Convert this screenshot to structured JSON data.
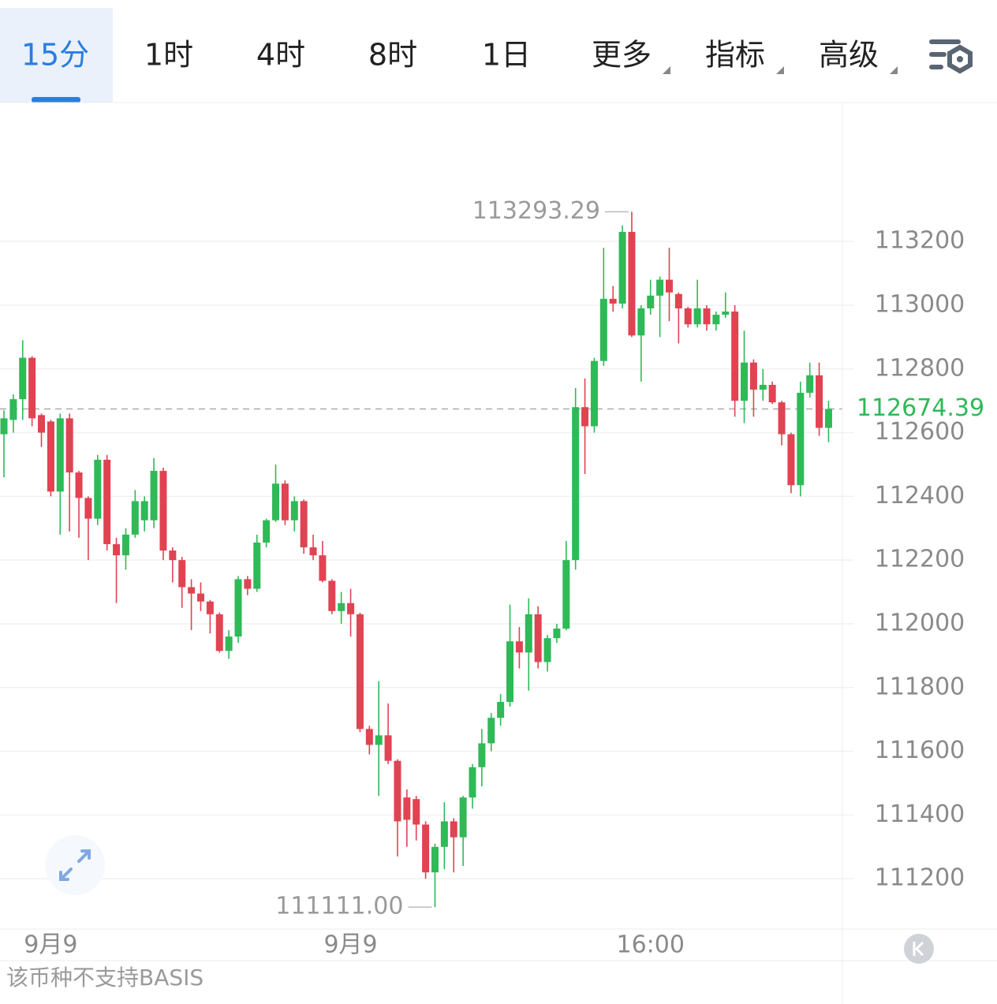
{
  "tabs": [
    "15分",
    "1时",
    "4时",
    "8时",
    "1日",
    "更多",
    "指标",
    "高级"
  ],
  "footer": "该币种不支持BASIS",
  "chart_data": {
    "type": "candlestick",
    "categories": [
      null,
      null,
      null,
      null,
      null,
      "9月9",
      null,
      null,
      null,
      null,
      null,
      null,
      null,
      null,
      null,
      null,
      null,
      null,
      null,
      null,
      null,
      null,
      null,
      null,
      null,
      null,
      null,
      null,
      null,
      null,
      null,
      null,
      null,
      null,
      null,
      null,
      null,
      "9月9",
      null,
      null,
      null,
      null,
      null,
      null,
      null,
      null,
      null,
      null,
      null,
      null,
      null,
      null,
      null,
      null,
      null,
      null,
      null,
      null,
      null,
      null,
      null,
      null,
      null,
      null,
      null,
      null,
      null,
      null,
      null,
      "16:00",
      null,
      null,
      null,
      null,
      null,
      null,
      null,
      null,
      null,
      null,
      null,
      null,
      null,
      null,
      null,
      null,
      null,
      null,
      null
    ],
    "series": {
      "up_color": "#2fb957",
      "down_color": "#e04352",
      "open": [
        112595,
        112640,
        112705,
        112835,
        112655,
        112635,
        112415,
        112645,
        112475,
        112395,
        112330,
        112515,
        112250,
        112215,
        112280,
        112325,
        112325,
        112480,
        112230,
        112200,
        112115,
        112095,
        112070,
        112030,
        111915,
        111960,
        112140,
        112110,
        112255,
        112325,
        112440,
        112325,
        112385,
        112240,
        112215,
        112135,
        112040,
        112065,
        112030,
        111670,
        111620,
        111650,
        111570,
        111455,
        111450,
        111370,
        111220,
        111300,
        111380,
        111330,
        111455,
        111550,
        111625,
        111705,
        111755,
        111945,
        111910,
        112030,
        111880,
        111955,
        111985,
        112200,
        112680,
        112620,
        112825,
        113020,
        113005,
        113230,
        112905,
        112990,
        113030,
        113080,
        113035,
        112990,
        112940,
        112990,
        112940,
        112970,
        112980,
        112700,
        112820,
        112735,
        112750,
        112695,
        112595,
        112435,
        112725,
        112780,
        112615
      ],
      "high": [
        112670,
        112720,
        112890,
        112840,
        112660,
        112640,
        112660,
        112660,
        112480,
        112400,
        112530,
        112530,
        112270,
        112300,
        112420,
        112400,
        112520,
        112490,
        112240,
        112210,
        112140,
        112130,
        112075,
        112035,
        111980,
        112150,
        112150,
        112280,
        112330,
        112500,
        112450,
        112400,
        112390,
        112280,
        112260,
        112140,
        112100,
        112110,
        112035,
        111680,
        111820,
        111750,
        111575,
        111480,
        111460,
        111380,
        111310,
        111440,
        111390,
        111460,
        111560,
        111670,
        111720,
        111780,
        112060,
        111990,
        112080,
        112055,
        111965,
        112000,
        112260,
        112740,
        112770,
        112835,
        113180,
        113060,
        113250,
        113293.29,
        113000,
        113080,
        113090,
        113180,
        113040,
        112995,
        113080,
        113000,
        112980,
        113040,
        113000,
        112920,
        112830,
        112800,
        112760,
        112700,
        112600,
        112760,
        112820,
        112820,
        112700
      ],
      "low": [
        112460,
        112600,
        112640,
        112620,
        112555,
        112400,
        112280,
        112290,
        112270,
        112200,
        112310,
        112230,
        112065,
        112170,
        112270,
        112290,
        112300,
        112200,
        112130,
        112050,
        111980,
        112040,
        111970,
        111910,
        111890,
        111940,
        112090,
        112100,
        112240,
        112320,
        112310,
        112290,
        112220,
        112200,
        112130,
        112030,
        112000,
        111960,
        111660,
        111590,
        111460,
        111560,
        111270,
        111300,
        111320,
        111200,
        111111,
        111230,
        111220,
        111240,
        111420,
        111490,
        111600,
        111680,
        111740,
        111860,
        111790,
        111860,
        111850,
        111940,
        111980,
        112170,
        112470,
        112600,
        112810,
        112980,
        112990,
        112900,
        112760,
        112970,
        112900,
        112950,
        112880,
        112930,
        112930,
        112920,
        112920,
        112960,
        112650,
        112630,
        112650,
        112700,
        112690,
        112560,
        112410,
        112400,
        112710,
        112590,
        112570
      ],
      "close": [
        112645,
        112705,
        112835,
        112645,
        112600,
        112415,
        112645,
        112475,
        112395,
        112330,
        112515,
        112250,
        112215,
        112280,
        112385,
        112385,
        112480,
        112230,
        112200,
        112115,
        112095,
        112070,
        112030,
        111915,
        111960,
        112140,
        112110,
        112255,
        112325,
        112440,
        112325,
        112385,
        112240,
        112215,
        112135,
        112040,
        112065,
        112030,
        111670,
        111620,
        111650,
        111570,
        111380,
        111385,
        111370,
        111220,
        111300,
        111380,
        111330,
        111455,
        111550,
        111625,
        111705,
        111755,
        111945,
        111910,
        112030,
        111880,
        111955,
        111985,
        112200,
        112680,
        112620,
        112825,
        113020,
        113005,
        113230,
        112905,
        112990,
        113030,
        113080,
        113040,
        112990,
        112940,
        112990,
        112940,
        112970,
        112980,
        112700,
        112820,
        112735,
        112750,
        112695,
        112595,
        112435,
        112725,
        112780,
        112615,
        112674.39
      ]
    },
    "ylim": [
      111042,
      113636
    ],
    "yticks": [
      111200,
      111400,
      111600,
      111800,
      112000,
      112200,
      112400,
      112600,
      112800,
      113000,
      113200
    ],
    "grid": true,
    "annotations": {
      "max": {
        "value": 113293.29,
        "label": "113293.29"
      },
      "min": {
        "value": 111111,
        "label": "111111.00"
      },
      "last": {
        "value": 112674.39,
        "label": "112674.39"
      }
    }
  }
}
